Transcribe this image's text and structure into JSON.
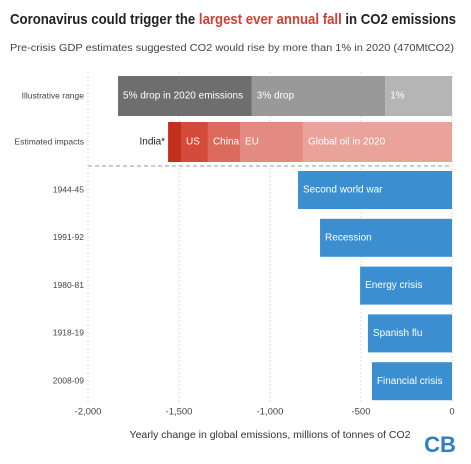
{
  "chart_data": {
    "type": "bar",
    "orientation": "horizontal",
    "title": {
      "before": "Coronavirus could trigger the ",
      "highlight": "largest ever annual fall",
      "after": " in CO2 emissions"
    },
    "title_highlight_color": "#d2402f",
    "subtitle": "Pre-crisis GDP estimates suggested CO2 would rise by more than 1% in 2020 (470MtCO2)",
    "xlabel": "Yearly change in global emissions, millions of tonnes of CO2",
    "xlim": [
      -2000,
      0
    ],
    "xticks": [
      {
        "value": -2000,
        "label": "-2,000"
      },
      {
        "value": -1500,
        "label": "-1,500"
      },
      {
        "value": -1000,
        "label": "-1,000"
      },
      -500,
      0
    ],
    "grid": true,
    "stacked_rows": [
      {
        "label": "Illustrative range",
        "segments": [
          {
            "name": "1%",
            "color": "#b5b5b5",
            "value": -367
          },
          {
            "name": "3% drop",
            "color": "#999999",
            "value": -733
          },
          {
            "name": "5% drop in 2020 emissions",
            "color": "#6e6e6e",
            "value": -735
          }
        ]
      },
      {
        "label": "Estimated impacts",
        "segments": [
          {
            "name": "Global oil in 2020",
            "color": "#e9a39b",
            "value": -819
          },
          {
            "name": "EU",
            "color": "#e38b80",
            "value": -346
          },
          {
            "name": "China",
            "color": "#dc6b5e",
            "value": -176
          },
          {
            "name": "US",
            "color": "#d44b3b",
            "value": -148
          },
          {
            "name": "India*",
            "color": "#c2301d",
            "value": -71
          }
        ]
      }
    ],
    "categories": [
      "1944-45",
      "1991-92",
      "1980-81",
      "1918-19",
      "2008-09"
    ],
    "bar_labels": [
      "Second world war",
      "Recession",
      "Energy crisis",
      "Spanish flu",
      "Financial crisis"
    ],
    "values": [
      -846,
      -725,
      -505,
      -462,
      -440
    ],
    "color": "#3b8ed0",
    "logo": "CB"
  }
}
